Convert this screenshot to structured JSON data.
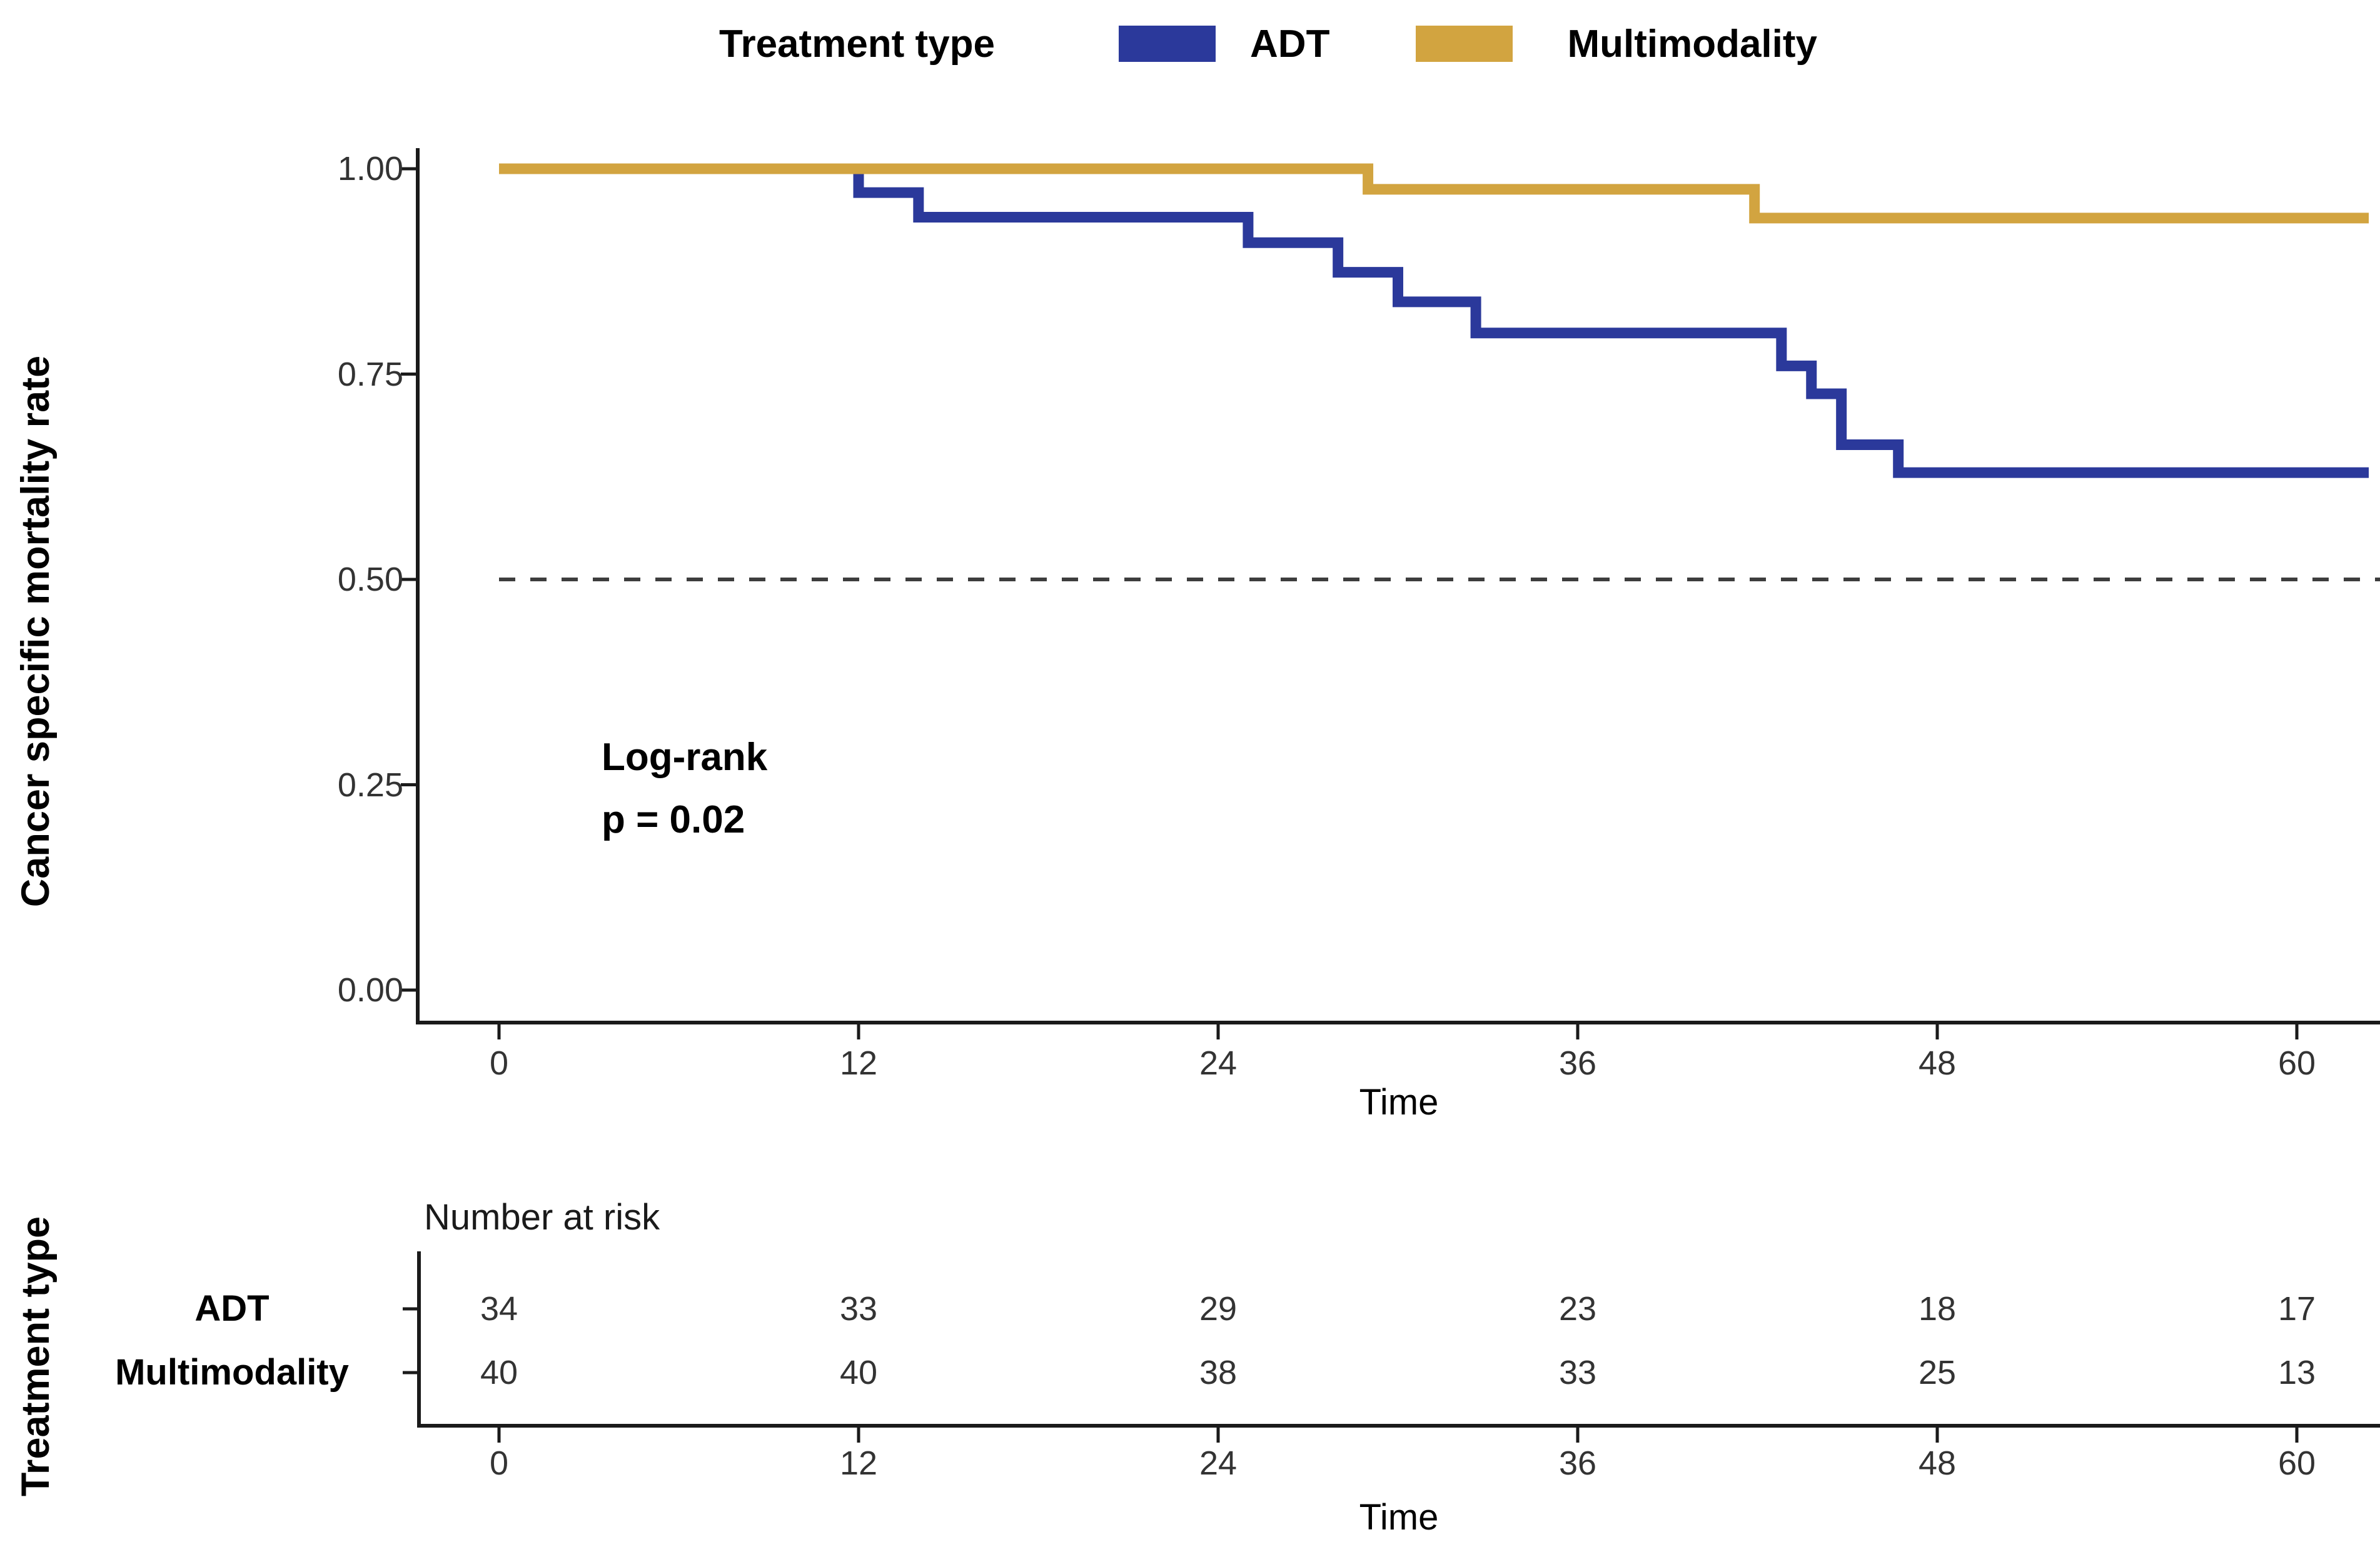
{
  "legend": {
    "title": "Treatment type",
    "items": [
      {
        "label": "ADT",
        "color": "#2b399b"
      },
      {
        "label": "Multimodality",
        "color": "#d2a440"
      }
    ]
  },
  "y_axis": {
    "label": "Cancer specific mortality rate",
    "ticks": [
      "1.00",
      "0.75",
      "0.50",
      "0.25",
      "0.00"
    ]
  },
  "x_axis": {
    "label": "Time",
    "ticks": [
      "0",
      "12",
      "24",
      "36",
      "48",
      "60"
    ]
  },
  "annotation": {
    "line1": "Log-rank",
    "line2": "p = 0.02"
  },
  "chart_data": {
    "type": "line",
    "subtype": "kaplan-meier-step",
    "title": "",
    "xlabel": "Time",
    "ylabel": "Cancer specific mortality rate",
    "xlim": [
      0,
      62.4
    ],
    "ylim": [
      0,
      1
    ],
    "x_ticks": [
      0,
      12,
      24,
      36,
      48,
      60
    ],
    "y_ticks": [
      1.0,
      0.75,
      0.5,
      0.25,
      0.0
    ],
    "grid": false,
    "legend_position": "top",
    "reference_line": {
      "y": 0.5,
      "style": "dashed",
      "color": "#3d3d3d"
    },
    "series": [
      {
        "name": "ADT",
        "color": "#2b399b",
        "end_x": 62.4,
        "steps": [
          [
            0,
            1.0
          ],
          [
            12,
            0.971
          ],
          [
            14,
            0.941
          ],
          [
            25,
            0.91
          ],
          [
            28,
            0.874
          ],
          [
            30,
            0.838
          ],
          [
            32.6,
            0.8
          ],
          [
            42.8,
            0.76
          ],
          [
            43.8,
            0.726
          ],
          [
            44.8,
            0.664
          ],
          [
            46.7,
            0.63
          ]
        ]
      },
      {
        "name": "Multimodality",
        "color": "#d2a440",
        "end_x": 62.4,
        "steps": [
          [
            0,
            1.0
          ],
          [
            29,
            0.975
          ],
          [
            41.9,
            0.94
          ]
        ]
      }
    ]
  },
  "risk_table": {
    "header": "Number at risk",
    "row_axis_label": "Treatment type",
    "xlabel": "Time",
    "x_ticks": [
      0,
      12,
      24,
      36,
      48,
      60
    ],
    "rows": [
      {
        "label": "ADT",
        "values": [
          "34",
          "33",
          "29",
          "23",
          "18",
          "17"
        ]
      },
      {
        "label": "Multimodality",
        "values": [
          "40",
          "40",
          "38",
          "33",
          "25",
          "13"
        ]
      }
    ]
  }
}
